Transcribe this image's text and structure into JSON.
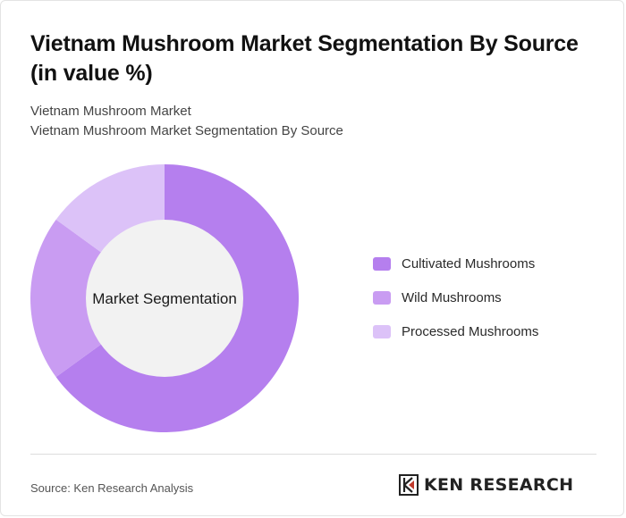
{
  "header": {
    "title": "Vietnam Mushroom Market Segmentation By Source (in value %)",
    "subtitle_line1": "Vietnam Mushroom Market",
    "subtitle_line2": "Vietnam Mushroom Market Segmentation By Source"
  },
  "chart_data": {
    "type": "pie",
    "donut": true,
    "center_label": "Market Segmentation",
    "categories": [
      "Cultivated Mushrooms",
      "Wild Mushrooms",
      "Processed Mushrooms"
    ],
    "values": [
      65,
      20,
      15
    ],
    "colors": [
      "#b57fee",
      "#c99cf2",
      "#dcc2f8"
    ],
    "center_fill": "#f2f2f2",
    "legend_position": "right"
  },
  "footer": {
    "source": "Source: Ken Research Analysis",
    "logo_text": "KEN RESEARCH"
  }
}
